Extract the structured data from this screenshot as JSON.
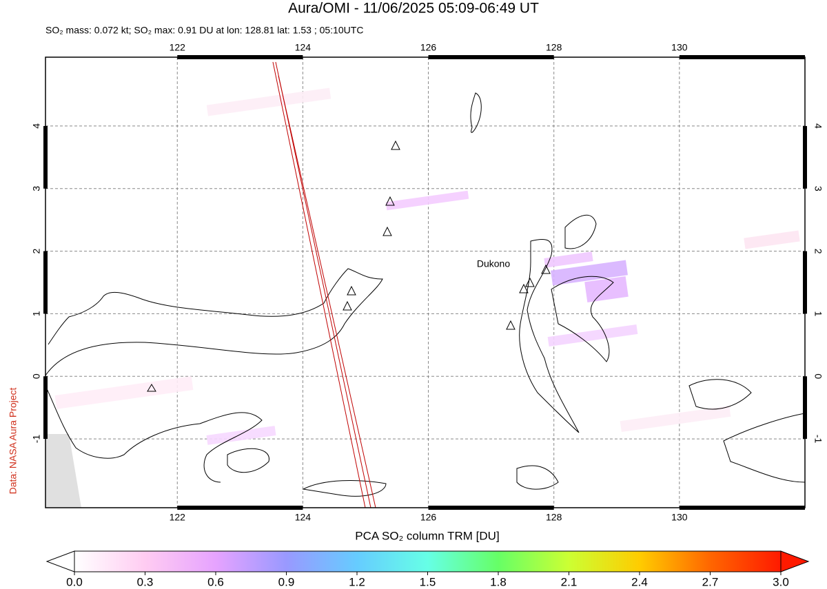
{
  "chart_data": {
    "type": "map",
    "title": "Aura/OMI - 11/06/2025 05:09-06:49 UT",
    "subtitle": "SO₂ mass: 0.072 kt; SO₂ max: 0.91 DU at lon: 128.81 lat: 1.53 ; 05:10UTC",
    "credit": "Data: NASA Aura Project",
    "annotation": "Dukono",
    "xlim": [
      119.9,
      132
    ],
    "ylim": [
      -2.1,
      5.1
    ],
    "xticks": [
      122,
      124,
      126,
      128,
      130
    ],
    "yticks": [
      -1,
      0,
      1,
      2,
      3,
      4
    ],
    "grid": true,
    "colorbar": {
      "label": "PCA SO₂ column TRM [DU]",
      "lim": [
        0,
        3
      ],
      "ticks": [
        {
          "value": 0,
          "label": "0.0"
        },
        0.3,
        0.6,
        0.9,
        1.2,
        1.5,
        1.8,
        2.1,
        2.4,
        2.7,
        {
          "value": 3,
          "label": "3.0"
        }
      ],
      "colors": [
        "#ffffff",
        "#ffccf2",
        "#e6a3ff",
        "#9999ff",
        "#66ccff",
        "#66ffe6",
        "#66ff66",
        "#ccff33",
        "#ffcc00",
        "#ff6600",
        "#ff1a00"
      ]
    }
  }
}
